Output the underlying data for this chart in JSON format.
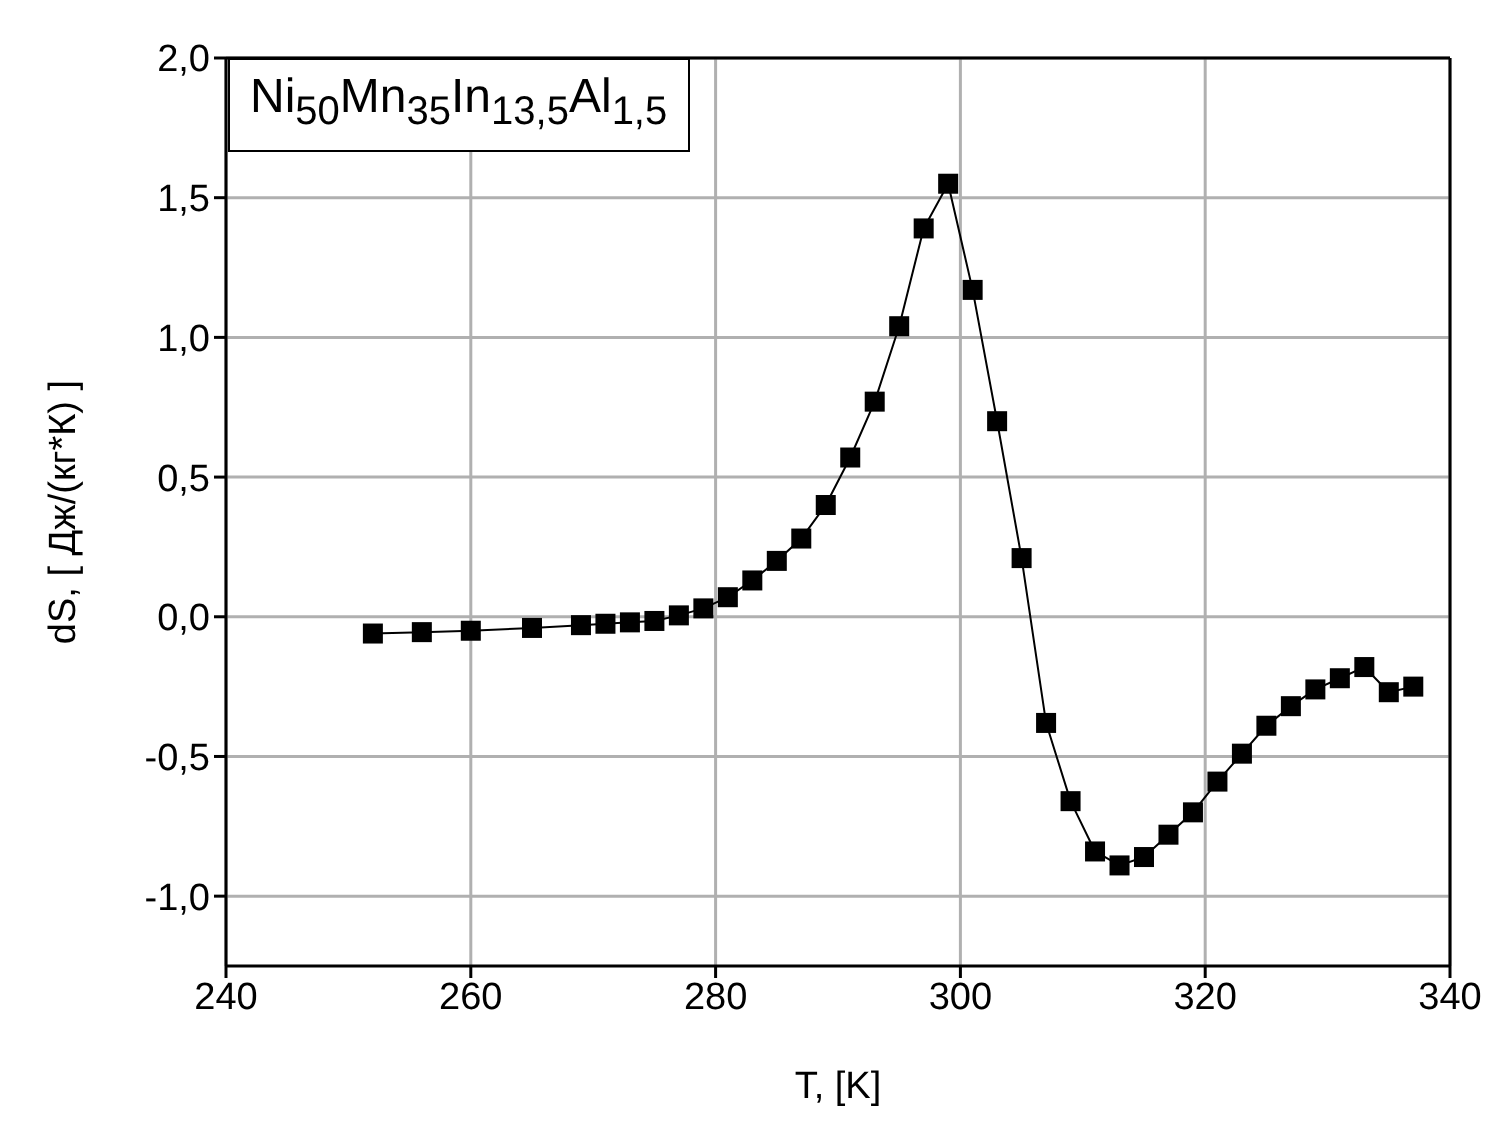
{
  "chart_data": {
    "type": "line",
    "title": "Ni$_{50}$Mn$_{35}$In$_{13,5}$Al$_{1,5}$",
    "xlabel": "T, [K]",
    "ylabel": "dS, [ Дж/(кг*К) ]",
    "x": [
      252,
      256,
      260,
      265,
      269,
      271,
      273,
      275,
      277,
      279,
      281,
      283,
      285,
      287,
      289,
      291,
      293,
      295,
      297,
      299,
      301,
      303,
      305,
      307,
      309,
      311,
      313,
      315,
      317,
      319,
      321,
      323,
      325,
      327,
      329,
      331,
      333,
      335,
      337
    ],
    "series": [
      {
        "color": "#000000",
        "values": [
          -0.06,
          -0.055,
          -0.05,
          -0.04,
          -0.03,
          -0.025,
          -0.02,
          -0.015,
          0.005,
          0.03,
          0.07,
          0.13,
          0.2,
          0.28,
          0.4,
          0.57,
          0.77,
          1.04,
          1.39,
          1.55,
          1.17,
          0.7,
          0.21,
          -0.38,
          -0.66,
          -0.84,
          -0.89,
          -0.86,
          -0.78,
          -0.7,
          -0.59,
          -0.49,
          -0.39,
          -0.32,
          -0.26,
          -0.22,
          -0.18,
          -0.27,
          -0.25
        ]
      }
    ],
    "xlim": [
      240,
      340
    ],
    "xticks": [
      240,
      260,
      280,
      300,
      320,
      340
    ],
    "ylim": [
      -1.25,
      2.0
    ],
    "yticks": [
      {
        "value": -1.0,
        "label": "-1,0"
      },
      {
        "value": -0.5,
        "label": "-0,5"
      },
      {
        "value": 0.0,
        "label": "0,0"
      },
      {
        "value": 0.5,
        "label": "0,5"
      },
      {
        "value": 1.0,
        "label": "1,0"
      },
      {
        "value": 1.5,
        "label": "1,5"
      },
      {
        "value": 2.0,
        "label": "2,0"
      }
    ],
    "grid": true,
    "marker": "square",
    "line_style": "solid"
  }
}
